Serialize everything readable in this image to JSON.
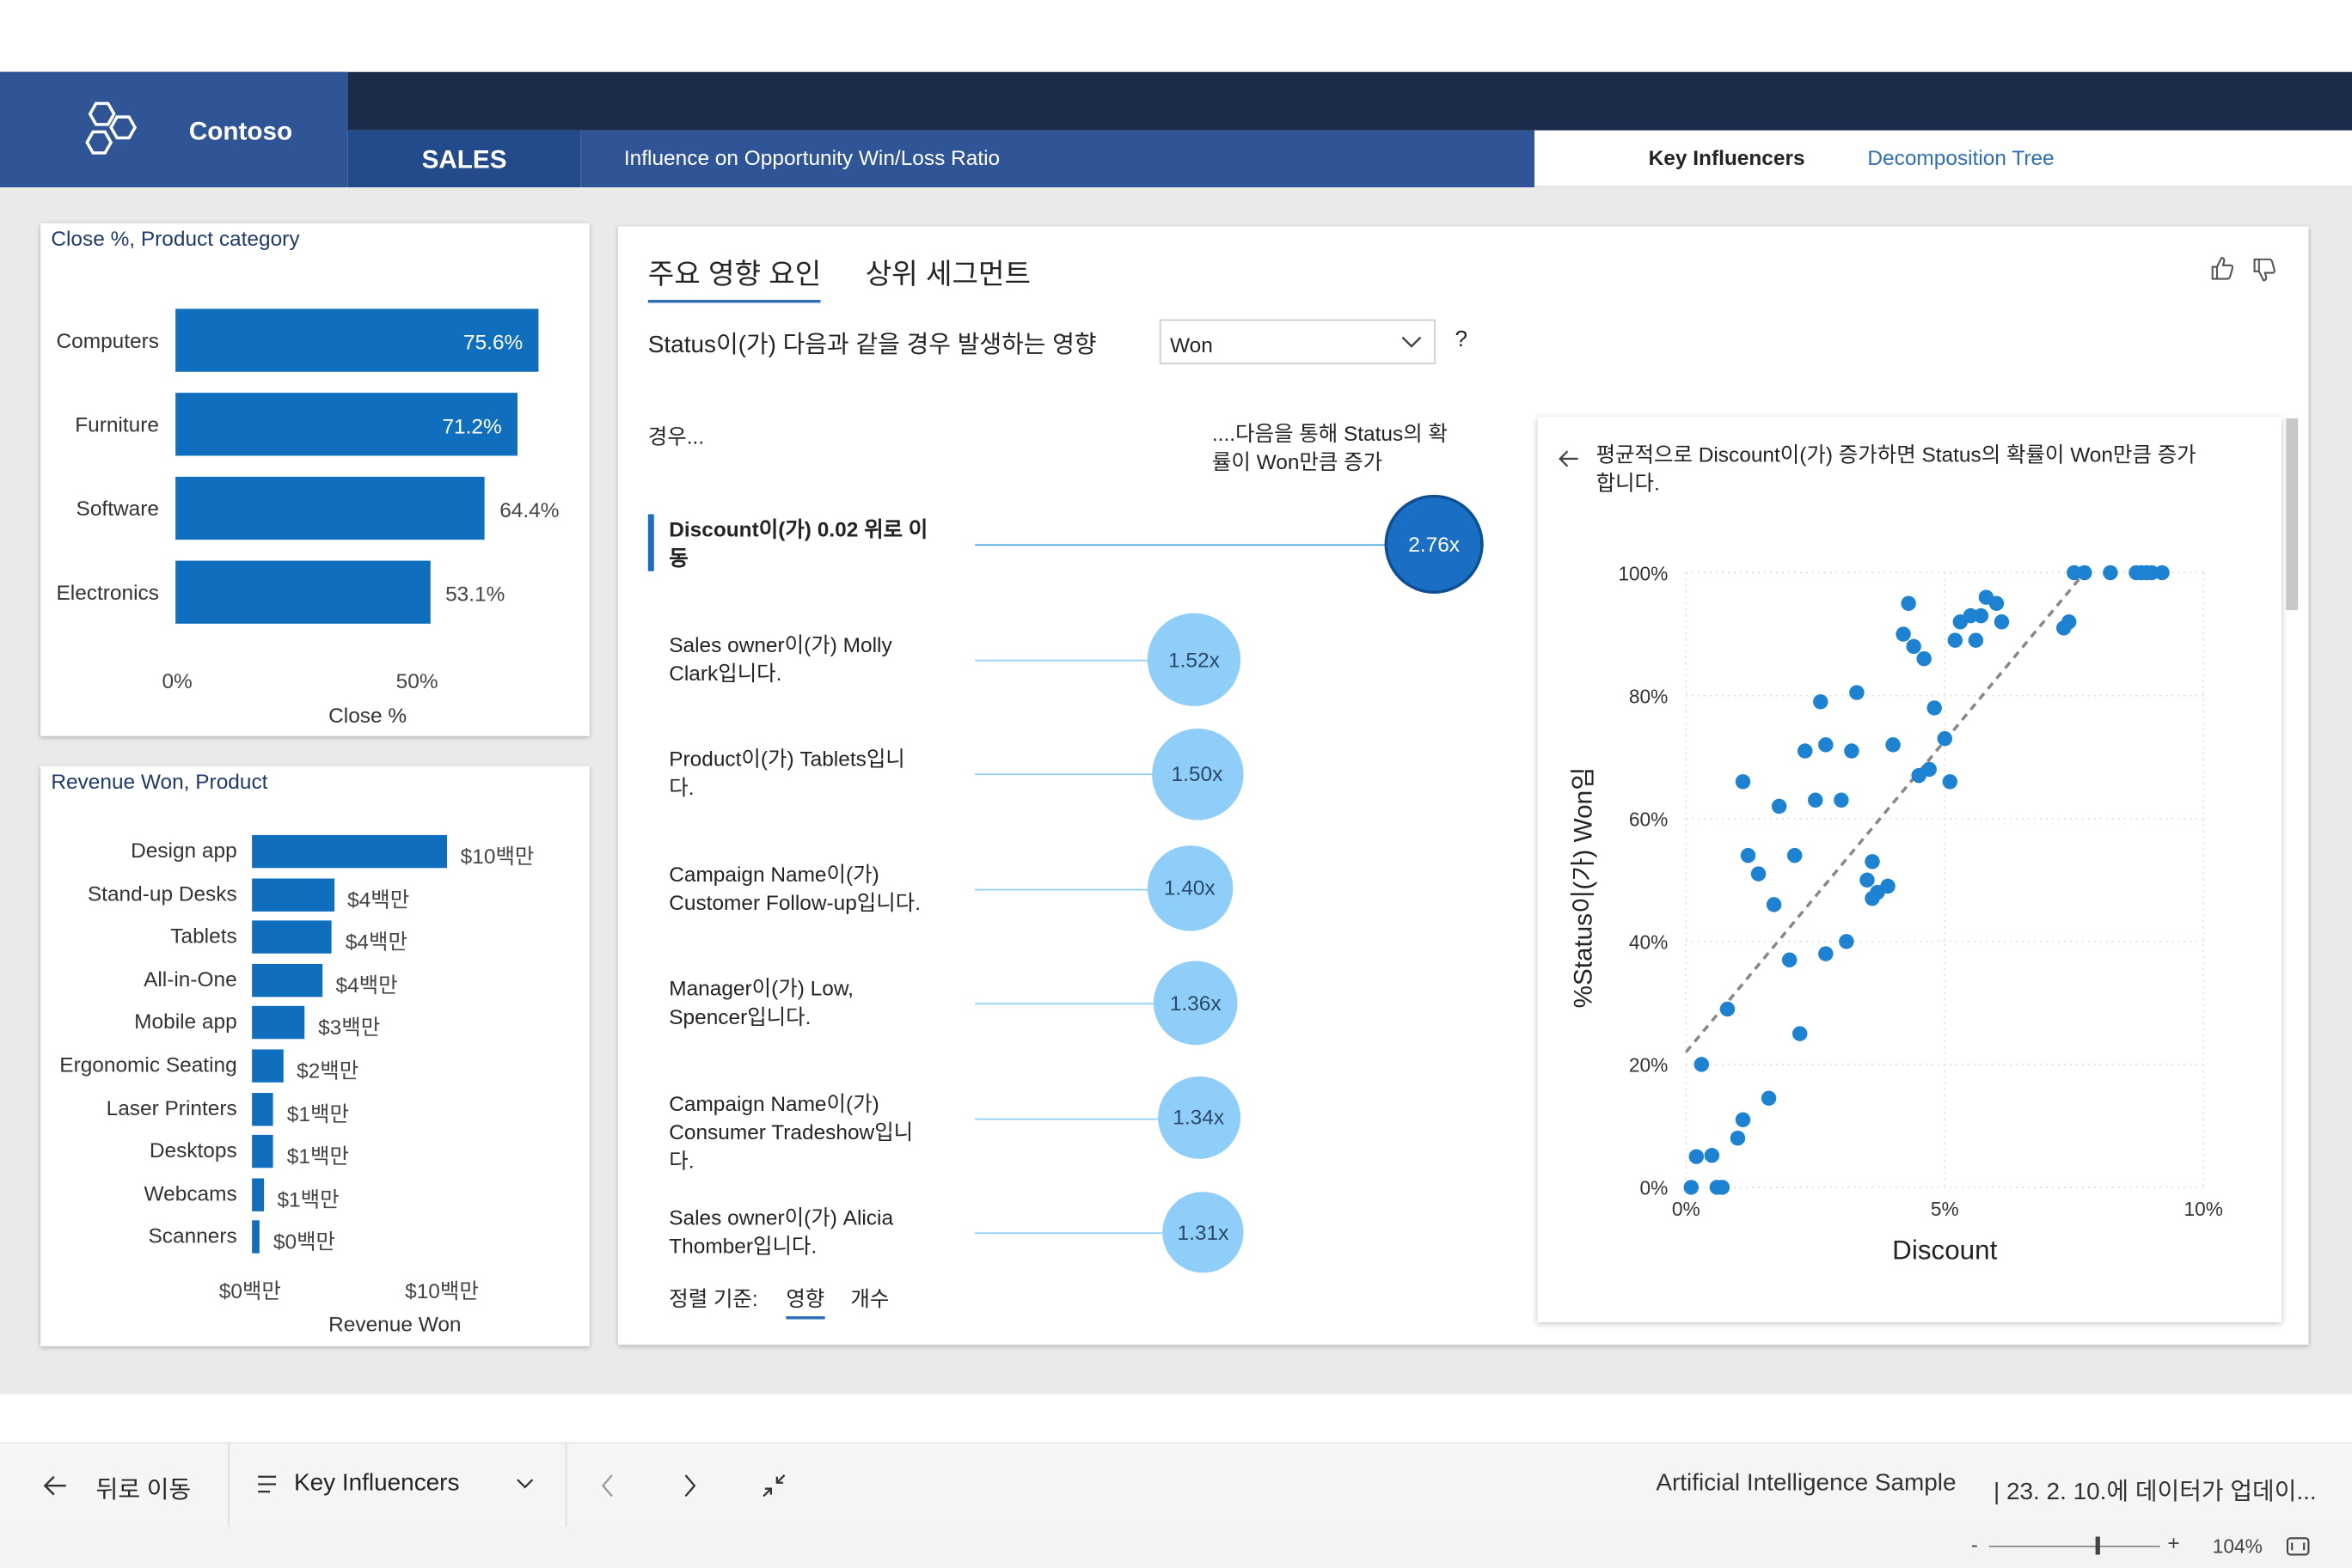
{
  "header": {
    "brand": "Contoso",
    "section_tab": "SALES",
    "page_heading": "Influence on Opportunity Win/Loss Ratio",
    "nav": [
      {
        "label": "Key Influencers",
        "active": true
      },
      {
        "label": "Decomposition Tree",
        "active": false
      }
    ]
  },
  "close_card": {
    "title": "Close %, Product category",
    "xlabel": "Close %",
    "ticks": [
      "0%",
      "50%"
    ],
    "bars": [
      {
        "label": "Computers",
        "display": "75.6%",
        "value": 75.6
      },
      {
        "label": "Furniture",
        "display": "71.2%",
        "value": 71.2
      },
      {
        "label": "Software",
        "display": "64.4%",
        "value": 64.4
      },
      {
        "label": "Electronics",
        "display": "53.1%",
        "value": 53.1
      }
    ]
  },
  "revenue_card": {
    "title": "Revenue Won, Product",
    "xlabel": "Revenue Won",
    "ticks": [
      "$0백만",
      "$10백만"
    ],
    "bars": [
      {
        "label": "Design app",
        "display": "$10백만",
        "value": 10
      },
      {
        "label": "Stand-up Desks",
        "display": "$4백만",
        "value": 4.2
      },
      {
        "label": "Tablets",
        "display": "$4백만",
        "value": 4.1
      },
      {
        "label": "All-in-One",
        "display": "$4백만",
        "value": 3.6
      },
      {
        "label": "Mobile app",
        "display": "$3백만",
        "value": 2.7
      },
      {
        "label": "Ergonomic Seating",
        "display": "$2백만",
        "value": 1.6
      },
      {
        "label": "Laser Printers",
        "display": "$1백만",
        "value": 1.1
      },
      {
        "label": "Desktops",
        "display": "$1백만",
        "value": 1.1
      },
      {
        "label": "Webcams",
        "display": "$1백만",
        "value": 0.6
      },
      {
        "label": "Scanners",
        "display": "$0백만",
        "value": 0.4
      }
    ]
  },
  "ki": {
    "tabs": [
      "주요 영향 요인",
      "상위 세그먼트"
    ],
    "question": "Status이(가) 다음과 같을 경우 발생하는 영향",
    "dropdown_value": "Won",
    "help": "?",
    "left_header": "경우...",
    "right_header_1": "....다음을 통해 Status의 확",
    "right_header_2": "률이 Won만큼 증가",
    "items": [
      {
        "l1": "Discount이(가) 0.02 위로 이",
        "l2": "동",
        "l3": "",
        "value": "2.76x",
        "num": 2.76,
        "selected": true
      },
      {
        "l1": "Sales owner이(가) Molly",
        "l2": "Clark입니다.",
        "l3": "",
        "value": "1.52x",
        "num": 1.52,
        "selected": false
      },
      {
        "l1": "Product이(가) Tablets입니",
        "l2": "다.",
        "l3": "",
        "value": "1.50x",
        "num": 1.5,
        "selected": false
      },
      {
        "l1": "Campaign Name이(가)",
        "l2": "Customer Follow-up입니다.",
        "l3": "",
        "value": "1.40x",
        "num": 1.4,
        "selected": false
      },
      {
        "l1": "Manager이(가) Low,",
        "l2": "Spencer입니다.",
        "l3": "",
        "value": "1.36x",
        "num": 1.36,
        "selected": false
      },
      {
        "l1": "Campaign Name이(가)",
        "l2": "Consumer Tradeshow입니",
        "l3": "다.",
        "value": "1.34x",
        "num": 1.34,
        "selected": false
      },
      {
        "l1": "Sales owner이(가) Alicia",
        "l2": "Thomber입니다.",
        "l3": "",
        "value": "1.31x",
        "num": 1.31,
        "selected": false
      }
    ],
    "sort_label": "정렬 기준:",
    "sort_options": [
      "영향",
      "개수"
    ],
    "detail_line1": "평균적으로 Discount이(가) 증가하면 Status의 확률이 Won만큼 증가",
    "detail_line2": "합니다."
  },
  "chart_data": {
    "type": "scatter",
    "xlabel": "Discount",
    "ylabel": "%Status이(가) Won임",
    "x_ticks": [
      "0%",
      "5%",
      "10%"
    ],
    "y_ticks": [
      "0%",
      "20%",
      "40%",
      "60%",
      "80%",
      "100%"
    ],
    "xlim": [
      0,
      10
    ],
    "ylim": [
      0,
      100
    ],
    "grid": true,
    "trendline": {
      "from": [
        0,
        22
      ],
      "to": [
        7.7,
        100
      ]
    },
    "points": [
      [
        0.1,
        0
      ],
      [
        0.2,
        5
      ],
      [
        0.5,
        5.2
      ],
      [
        0.6,
        0
      ],
      [
        0.7,
        0
      ],
      [
        0.3,
        20
      ],
      [
        0.8,
        29
      ],
      [
        1.0,
        8
      ],
      [
        1.1,
        11
      ],
      [
        1.6,
        14.5
      ],
      [
        1.2,
        54
      ],
      [
        1.4,
        51
      ],
      [
        1.1,
        66
      ],
      [
        1.7,
        46
      ],
      [
        1.8,
        62
      ],
      [
        2.0,
        37
      ],
      [
        2.1,
        54
      ],
      [
        2.2,
        25
      ],
      [
        2.3,
        71
      ],
      [
        2.6,
        79
      ],
      [
        2.5,
        63
      ],
      [
        2.7,
        72
      ],
      [
        2.7,
        38
      ],
      [
        3.0,
        63
      ],
      [
        3.1,
        40
      ],
      [
        3.2,
        71
      ],
      [
        3.3,
        80.5
      ],
      [
        3.6,
        47
      ],
      [
        3.6,
        53
      ],
      [
        3.5,
        50
      ],
      [
        3.7,
        48
      ],
      [
        3.9,
        49
      ],
      [
        4.0,
        72
      ],
      [
        4.2,
        90
      ],
      [
        4.3,
        95
      ],
      [
        4.4,
        88
      ],
      [
        4.6,
        86
      ],
      [
        4.5,
        67
      ],
      [
        4.7,
        68
      ],
      [
        4.8,
        78
      ],
      [
        5.0,
        73
      ],
      [
        5.1,
        66
      ],
      [
        5.2,
        89
      ],
      [
        5.3,
        92
      ],
      [
        5.5,
        93
      ],
      [
        5.6,
        89
      ],
      [
        5.7,
        93
      ],
      [
        5.8,
        96
      ],
      [
        6.0,
        95
      ],
      [
        6.1,
        92
      ],
      [
        7.5,
        100
      ],
      [
        7.7,
        100
      ],
      [
        8.2,
        100
      ],
      [
        8.7,
        100
      ],
      [
        8.8,
        100
      ],
      [
        8.9,
        100
      ],
      [
        9.0,
        100
      ],
      [
        9.2,
        100
      ],
      [
        7.3,
        91
      ],
      [
        7.4,
        92
      ]
    ]
  },
  "footer": {
    "back_label": "뒤로 이동",
    "page_selector": "Key Influencers",
    "report_name": "Artificial Intelligence Sample",
    "updated": "| 23. 2. 10.에 데이터가 업데이...",
    "zoom": "104%",
    "zoom_level": 0.62
  },
  "colors": {
    "navy": "#1c2b4a",
    "brand_blue": "#2f5597",
    "bar_blue": "#106ebe",
    "bubble_light": "#8fcef9",
    "bubble_selected": "#1a6fc4"
  }
}
